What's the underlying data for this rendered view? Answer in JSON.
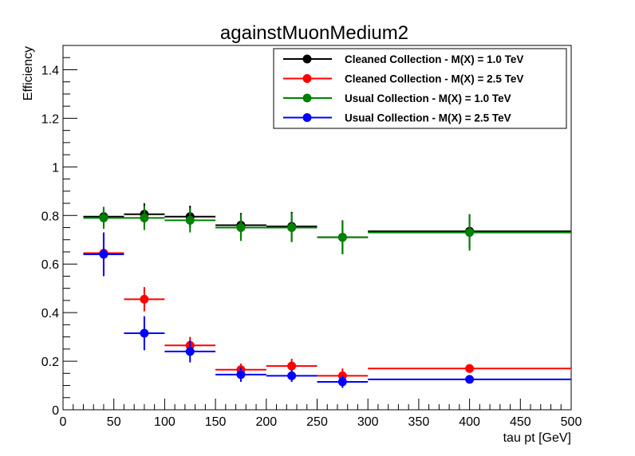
{
  "chart_data": {
    "type": "scatter",
    "title": "againstMuonMedium2",
    "xlabel": "tau pt [GeV]",
    "ylabel": "Efficiency",
    "xlim": [
      0,
      500
    ],
    "ylim": [
      0,
      1.5
    ],
    "x_ticks": [
      0,
      50,
      100,
      150,
      200,
      250,
      300,
      350,
      400,
      450,
      500
    ],
    "x_tick_labels": [
      "0",
      "50",
      "100",
      "150",
      "200",
      "250",
      "300",
      "350",
      "400",
      "450",
      "500"
    ],
    "y_ticks": [
      0,
      0.2,
      0.4,
      0.6,
      0.8,
      1,
      1.2,
      1.4
    ],
    "y_tick_labels": [
      "0",
      "0.2",
      "0.4",
      "0.6",
      "0.8",
      "1",
      "1.2",
      "1.4"
    ],
    "grid": false,
    "legend_position": "top-right",
    "bins": [
      [
        20,
        60
      ],
      [
        60,
        100
      ],
      [
        100,
        150
      ],
      [
        150,
        200
      ],
      [
        200,
        250
      ],
      [
        250,
        300
      ],
      [
        300,
        500
      ]
    ],
    "x": [
      40,
      80,
      125,
      175,
      225,
      275,
      400
    ],
    "series": [
      {
        "name": "Cleaned Collection - M(X) = 1.0 TeV",
        "color": "#000000",
        "values": [
          0.795,
          0.805,
          0.795,
          0.76,
          0.755,
          0.71,
          0.735
        ],
        "errors": [
          0.04,
          0.045,
          0.045,
          0.05,
          0.06,
          0.07,
          0.07
        ]
      },
      {
        "name": "Cleaned Collection - M(X) = 2.5 TeV",
        "color": "#ff0000",
        "values": [
          0.645,
          0.455,
          0.265,
          0.165,
          0.18,
          0.14,
          0.17
        ],
        "errors": [
          0.085,
          0.05,
          0.035,
          0.025,
          0.03,
          0.03,
          0.015
        ]
      },
      {
        "name": "Usual Collection - M(X) = 1.0 TeV",
        "color": "#008000",
        "values": [
          0.79,
          0.79,
          0.78,
          0.75,
          0.75,
          0.71,
          0.73
        ],
        "errors": [
          0.045,
          0.05,
          0.05,
          0.055,
          0.06,
          0.07,
          0.075
        ]
      },
      {
        "name": "Usual Collection - M(X) = 2.5 TeV",
        "color": "#0000ff",
        "values": [
          0.64,
          0.315,
          0.24,
          0.145,
          0.14,
          0.115,
          0.125
        ],
        "errors": [
          0.09,
          0.07,
          0.045,
          0.03,
          0.025,
          0.025,
          0.012
        ]
      }
    ]
  }
}
